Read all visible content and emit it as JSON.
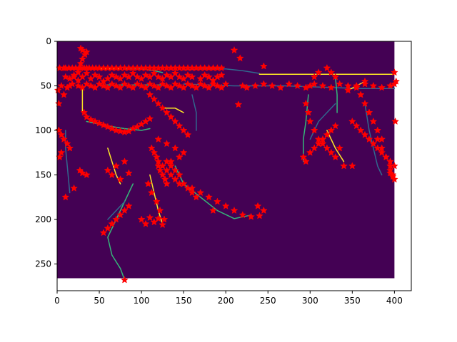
{
  "chart_data": {
    "type": "scatter",
    "title": "",
    "xlabel": "",
    "ylabel": "",
    "xlim": [
      0,
      420
    ],
    "ylim": [
      280,
      0
    ],
    "y_inverted": true,
    "x_ticks": [
      "0",
      "50",
      "100",
      "150",
      "200",
      "250",
      "300",
      "350",
      "400"
    ],
    "y_ticks": [
      "0",
      "50",
      "100",
      "150",
      "200",
      "250"
    ],
    "x_tick_values": [
      0,
      50,
      100,
      150,
      200,
      250,
      300,
      350,
      400
    ],
    "y_tick_values": [
      0,
      50,
      100,
      150,
      200,
      250
    ],
    "image": {
      "extent": [
        0,
        400,
        266,
        0
      ],
      "background_color": "#440154",
      "edge_colors": [
        "#fde725",
        "#35b779",
        "#31688e"
      ],
      "edges": [
        [
          [
            0,
            30
          ],
          [
            15,
            29
          ],
          [
            30,
            30
          ],
          [
            45,
            31
          ],
          [
            60,
            31
          ],
          [
            75,
            31
          ]
        ],
        [
          [
            80,
            31
          ],
          [
            100,
            31
          ],
          [
            115,
            33
          ],
          [
            125,
            35
          ]
        ],
        [
          [
            150,
            32
          ],
          [
            175,
            31
          ],
          [
            200,
            31
          ],
          [
            220,
            33
          ],
          [
            240,
            36
          ]
        ],
        [
          [
            240,
            37
          ],
          [
            270,
            37
          ],
          [
            300,
            37
          ],
          [
            330,
            37
          ],
          [
            360,
            37
          ],
          [
            400,
            37
          ]
        ],
        [
          [
            50,
            49
          ],
          [
            80,
            49
          ],
          [
            110,
            49
          ],
          [
            130,
            49
          ]
        ],
        [
          [
            150,
            48
          ],
          [
            180,
            49
          ],
          [
            210,
            50
          ],
          [
            240,
            50
          ],
          [
            270,
            50
          ],
          [
            300,
            51
          ],
          [
            330,
            52
          ],
          [
            360,
            53
          ],
          [
            400,
            53
          ]
        ],
        [
          [
            30,
            52
          ],
          [
            30,
            70
          ],
          [
            30,
            80
          ]
        ],
        [
          [
            35,
            90
          ],
          [
            60,
            95
          ],
          [
            80,
            98
          ],
          [
            100,
            100
          ],
          [
            110,
            98
          ]
        ],
        [
          [
            10,
            100
          ],
          [
            10,
            120
          ],
          [
            12,
            140
          ],
          [
            15,
            170
          ]
        ],
        [
          [
            60,
            120
          ],
          [
            65,
            135
          ],
          [
            70,
            150
          ],
          [
            75,
            160
          ]
        ],
        [
          [
            90,
            160
          ],
          [
            80,
            180
          ],
          [
            70,
            200
          ],
          [
            60,
            220
          ],
          [
            65,
            240
          ],
          [
            75,
            255
          ],
          [
            80,
            268
          ]
        ],
        [
          [
            80,
            180
          ],
          [
            70,
            190
          ],
          [
            60,
            200
          ]
        ],
        [
          [
            110,
            150
          ],
          [
            115,
            170
          ],
          [
            120,
            190
          ],
          [
            125,
            205
          ]
        ],
        [
          [
            140,
            140
          ],
          [
            150,
            160
          ],
          [
            170,
            175
          ],
          [
            190,
            190
          ],
          [
            210,
            199
          ],
          [
            230,
            195
          ]
        ],
        [
          [
            160,
            60
          ],
          [
            165,
            80
          ],
          [
            165,
            100
          ]
        ],
        [
          [
            125,
            75
          ],
          [
            140,
            75
          ],
          [
            150,
            80
          ]
        ],
        [
          [
            298,
            60
          ],
          [
            295,
            90
          ],
          [
            292,
            110
          ],
          [
            292,
            135
          ]
        ],
        [
          [
            300,
            110
          ],
          [
            310,
            90
          ],
          [
            320,
            80
          ],
          [
            330,
            70
          ]
        ],
        [
          [
            320,
            100
          ],
          [
            330,
            120
          ],
          [
            340,
            135
          ]
        ],
        [
          [
            330,
            40
          ],
          [
            332,
            60
          ],
          [
            332,
            80
          ]
        ],
        [
          [
            365,
            70
          ],
          [
            370,
            100
          ],
          [
            375,
            120
          ],
          [
            380,
            140
          ],
          [
            385,
            150
          ]
        ],
        [
          [
            345,
            55
          ],
          [
            355,
            50
          ],
          [
            365,
            45
          ]
        ]
      ]
    },
    "series": [
      {
        "marker": "star",
        "color": "#ff0000",
        "x": [
          3,
          8,
          10,
          14,
          18,
          22,
          26,
          28,
          32,
          35,
          38,
          42,
          46,
          50,
          55,
          60,
          65,
          70,
          75,
          80,
          85,
          90,
          95,
          100,
          105,
          110,
          115,
          120,
          125,
          130,
          135,
          140,
          145,
          150,
          155,
          160,
          165,
          170,
          175,
          180,
          185,
          190,
          195,
          210,
          217,
          245,
          10,
          15,
          20,
          25,
          30,
          35,
          40,
          45,
          50,
          55,
          60,
          65,
          70,
          75,
          80,
          85,
          90,
          95,
          100,
          105,
          110,
          115,
          120,
          125,
          130,
          135,
          140,
          145,
          150,
          155,
          160,
          170,
          175,
          180,
          185,
          190,
          195,
          5,
          12,
          18,
          25,
          30,
          35,
          40,
          45,
          50,
          55,
          60,
          65,
          70,
          75,
          80,
          85,
          90,
          95,
          100,
          105,
          110,
          115,
          120,
          125,
          130,
          135,
          140,
          145,
          150,
          155,
          160,
          165,
          170,
          175,
          180,
          185,
          190,
          195,
          200,
          220,
          225,
          235,
          245,
          255,
          265,
          275,
          285,
          295,
          305,
          315,
          325,
          335,
          345,
          355,
          365,
          375,
          385,
          395,
          400,
          1,
          2,
          8,
          15,
          20,
          25,
          28,
          30,
          33,
          30,
          28,
          35,
          32,
          35,
          40,
          45,
          50,
          55,
          60,
          65,
          70,
          75,
          80,
          85,
          90,
          95,
          100,
          105,
          110,
          2,
          5,
          8,
          12,
          15,
          5,
          3,
          27,
          30,
          35,
          20,
          10,
          60,
          70,
          80,
          65,
          75,
          85,
          110,
          115,
          120,
          125,
          130,
          135,
          140,
          145,
          150,
          155,
          120,
          130,
          140,
          150,
          145,
          135,
          125,
          120,
          122,
          125,
          128,
          130,
          85,
          80,
          75,
          70,
          65,
          60,
          55,
          80,
          108,
          112,
          118,
          122,
          127,
          130,
          135,
          140,
          145,
          150,
          160,
          170,
          180,
          190,
          200,
          210,
          220,
          230,
          240,
          245,
          238,
          215,
          112,
          115,
          118,
          120,
          125,
          130,
          135,
          140,
          145,
          155,
          160,
          165,
          100,
          105,
          110,
          115,
          120,
          125,
          185,
          295,
          298,
          300,
          305,
          310,
          315,
          320,
          325,
          330,
          292,
          295,
          300,
          305,
          310,
          315,
          320,
          325,
          330,
          335,
          340,
          350,
          300,
          305,
          310,
          320,
          325,
          330,
          350,
          355,
          360,
          365,
          370,
          375,
          380,
          385,
          390,
          395,
          400,
          360,
          365,
          370,
          375,
          380,
          385,
          395,
          398,
          400,
          345,
          355,
          365,
          380,
          385,
          390,
          395,
          398,
          400,
          402,
          401,
          395,
          398
        ],
        "y": [
          30,
          30,
          30,
          30,
          30,
          30,
          30,
          30,
          30,
          30,
          30,
          30,
          30,
          30,
          30,
          30,
          30,
          30,
          30,
          30,
          30,
          30,
          30,
          30,
          30,
          30,
          30,
          30,
          30,
          30,
          30,
          30,
          30,
          30,
          30,
          30,
          30,
          30,
          30,
          30,
          30,
          30,
          30,
          10,
          19,
          28,
          40,
          42,
          38,
          44,
          40,
          36,
          42,
          38,
          40,
          45,
          42,
          38,
          40,
          42,
          38,
          40,
          36,
          40,
          42,
          38,
          40,
          36,
          40,
          42,
          38,
          40,
          36,
          40,
          42,
          38,
          40,
          42,
          38,
          40,
          44,
          40,
          38,
          50,
          52,
          48,
          50,
          52,
          48,
          50,
          52,
          48,
          50,
          52,
          48,
          50,
          52,
          48,
          50,
          52,
          48,
          50,
          52,
          48,
          50,
          52,
          48,
          50,
          52,
          48,
          50,
          52,
          48,
          50,
          52,
          48,
          50,
          52,
          48,
          50,
          52,
          48,
          50,
          52,
          50,
          48,
          50,
          52,
          48,
          50,
          52,
          48,
          50,
          52,
          48,
          50,
          52,
          48,
          50,
          52,
          50,
          48,
          55,
          70,
          60,
          50,
          40,
          35,
          25,
          20,
          15,
          10,
          8,
          12,
          80,
          85,
          88,
          90,
          92,
          94,
          96,
          98,
          100,
          101,
          102,
          101,
          98,
          96,
          93,
          90,
          87,
          100,
          105,
          110,
          115,
          120,
          125,
          130,
          145,
          148,
          150,
          165,
          175,
          145,
          140,
          135,
          150,
          155,
          148,
          60,
          65,
          70,
          75,
          80,
          85,
          90,
          95,
          100,
          105,
          110,
          115,
          120,
          125,
          130,
          135,
          140,
          140,
          145,
          150,
          155,
          160,
          185,
          190,
          195,
          200,
          205,
          210,
          215,
          268,
          160,
          170,
          180,
          190,
          200,
          135,
          140,
          145,
          150,
          160,
          165,
          170,
          175,
          180,
          185,
          190,
          195,
          197,
          196,
          190,
          185,
          71,
          120,
          125,
          130,
          135,
          140,
          145,
          150,
          155,
          160,
          165,
          170,
          175,
          200,
          205,
          198,
          203,
          199,
          206,
          190,
          70,
          80,
          90,
          100,
          110,
          115,
          120,
          125,
          130,
          130,
          135,
          125,
          120,
          115,
          110,
          105,
          100,
          95,
          120,
          140,
          140,
          50,
          40,
          35,
          30,
          35,
          40,
          90,
          95,
          100,
          105,
          110,
          115,
          120,
          125,
          130,
          135,
          140,
          60,
          70,
          80,
          90,
          100,
          110,
          145,
          150,
          155,
          55,
          50,
          45,
          110,
          120,
          130,
          140,
          150,
          35,
          45,
          90,
          148,
          152
        ]
      }
    ]
  }
}
